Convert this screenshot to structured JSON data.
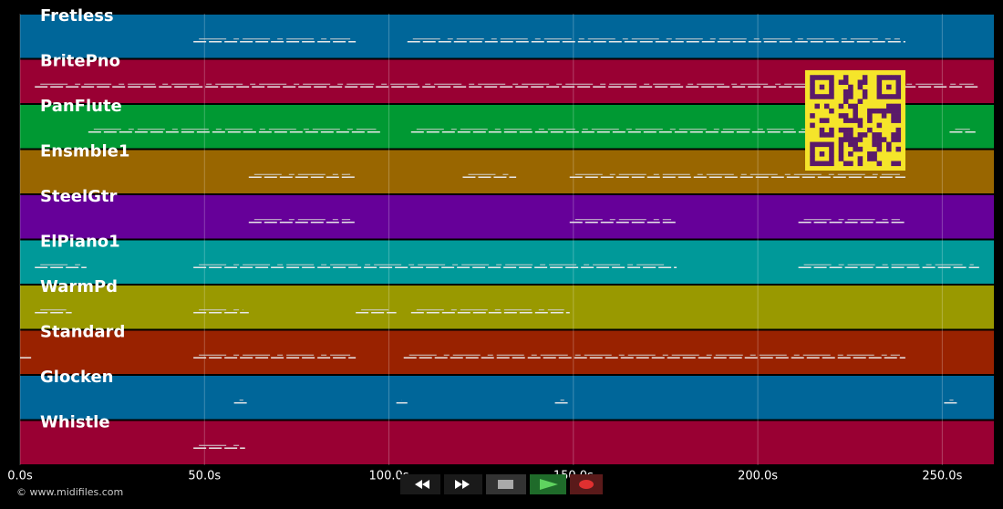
{
  "time_axis": {
    "xlim": [
      0,
      264
    ],
    "ticks": [
      {
        "value": 0,
        "label": "0.0s"
      },
      {
        "value": 50,
        "label": "50.0s"
      },
      {
        "value": 100,
        "label": "100.0s"
      },
      {
        "value": 150,
        "label": "150.0s"
      },
      {
        "value": 200,
        "label": "200.0s"
      },
      {
        "value": 250,
        "label": "250.0s"
      }
    ]
  },
  "tracks": [
    {
      "name": "Fretless",
      "color": "#006699",
      "segments": [
        [
          47,
          91
        ],
        [
          105,
          240
        ]
      ]
    },
    {
      "name": "BritePno",
      "color": "#990033",
      "segments": [
        [
          4,
          260
        ]
      ]
    },
    {
      "name": "PanFlute",
      "color": "#009933",
      "segments": [
        [
          18.5,
          98
        ],
        [
          106,
          240
        ],
        [
          252,
          259
        ]
      ]
    },
    {
      "name": "Ensmble1",
      "color": "#996600",
      "segments": [
        [
          62,
          91
        ],
        [
          120,
          134.5
        ],
        [
          149,
          240
        ]
      ]
    },
    {
      "name": "SteelGtr",
      "color": "#660099",
      "segments": [
        [
          62,
          91
        ],
        [
          149,
          178
        ],
        [
          211,
          240
        ]
      ]
    },
    {
      "name": "ElPiano1",
      "color": "#009999",
      "segments": [
        [
          4,
          18
        ],
        [
          47,
          178
        ],
        [
          211,
          260
        ]
      ]
    },
    {
      "name": "WarmPd",
      "color": "#999900",
      "segments": [
        [
          4,
          14
        ],
        [
          47,
          62
        ],
        [
          91,
          102
        ],
        [
          106,
          149
        ]
      ]
    },
    {
      "name": "Standard",
      "color": "#992200",
      "segments": [
        [
          0,
          3
        ],
        [
          47,
          91
        ],
        [
          104,
          240
        ]
      ]
    },
    {
      "name": "Glocken",
      "color": "#006699",
      "segments": [
        [
          58,
          62
        ],
        [
          102,
          105
        ],
        [
          145,
          149
        ],
        [
          250.5,
          254.5
        ]
      ]
    },
    {
      "name": "Whistle",
      "color": "#990033",
      "segments": [
        [
          47,
          61
        ]
      ]
    }
  ],
  "footer": "© www.midifiles.com"
}
